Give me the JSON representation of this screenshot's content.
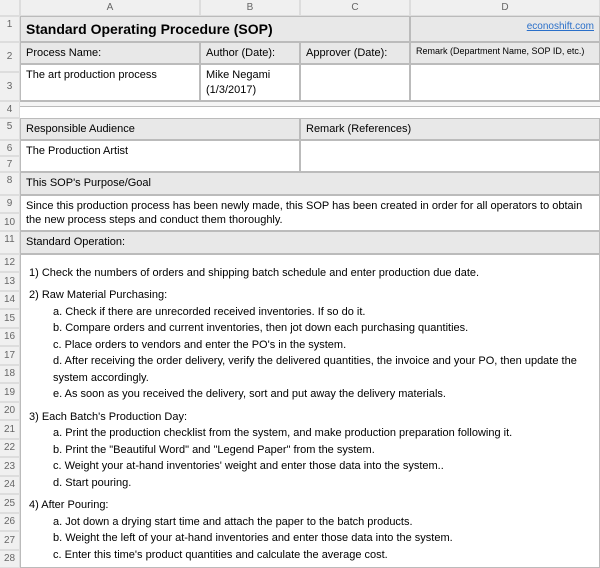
{
  "columns": [
    "A",
    "B",
    "C",
    "D"
  ],
  "title": "Standard Operating Procedure (SOP)",
  "site_link": "econoshift.com",
  "hdr": {
    "process_name": "Process Name:",
    "author": "Author (Date):",
    "approver": "Approver (Date):",
    "remark_top": "Remark (Department Name, SOP ID, etc.)",
    "resp_aud": "Responsible Audience",
    "remark_ref": "Remark (References)",
    "purpose": "This SOP's Purpose/Goal",
    "std_op": "Standard Operation:"
  },
  "val": {
    "process_name": "The art production process",
    "author": "Mike Negami (1/3/2017)",
    "approver": "",
    "remark_top": "",
    "resp_aud": "The Production Artist",
    "remark_ref": "",
    "purpose": "Since this production process has been newly made, this SOP has been created in order for all operators to obtain the new process steps and conduct them thoroughly."
  },
  "ops": {
    "s1": "1) Check the numbers of orders and shipping batch schedule and enter production due date.",
    "s2": "2) Raw Material Purchasing:",
    "s2a": "a. Check if there are unrecorded received inventories.  If so do it.",
    "s2b": "b. Compare orders and current inventories, then jot down each purchasing quantities.",
    "s2c": "c. Place orders to vendors and enter the PO's in the system.",
    "s2d": "d. After receiving the order delivery, verify the delivered quantities, the invoice and your PO, then update the system accordingly.",
    "s2e": "e. As soon as you received the delivery, sort and put away the delivery materials.",
    "s3": "3) Each Batch's Production Day:",
    "s3a": "a. Print the production checklist from the system, and make production preparation following it.",
    "s3b": "b. Print the \"Beautiful Word\" and \"Legend Paper\" from the system.",
    "s3c": "c. Weight your at-hand inventories' weight and enter those data into the system..",
    "s3d": "d. Start pouring.",
    "s4": "4) After Pouring:",
    "s4a": "a. Jot down a drying start time and attach the paper to the batch products.",
    "s4b": "b. Weight the left of your at-hand inventories and enter those data into the system.",
    "s4c": "c. Enter this time's product quantities and calculate the average cost."
  },
  "row_groups": {
    "r1": [
      "1"
    ],
    "r23": [
      "2",
      "3"
    ],
    "r4": [
      "4"
    ],
    "r5": [
      "5"
    ],
    "r67": [
      "6",
      "7"
    ],
    "r8": [
      "8"
    ],
    "r910": [
      "9",
      "10"
    ],
    "r11": [
      "11"
    ],
    "rops": [
      "12",
      "13",
      "14",
      "15",
      "16",
      "17",
      "18",
      "19",
      "20",
      "21",
      "22",
      "23",
      "24",
      "25",
      "26",
      "27",
      "28"
    ]
  }
}
